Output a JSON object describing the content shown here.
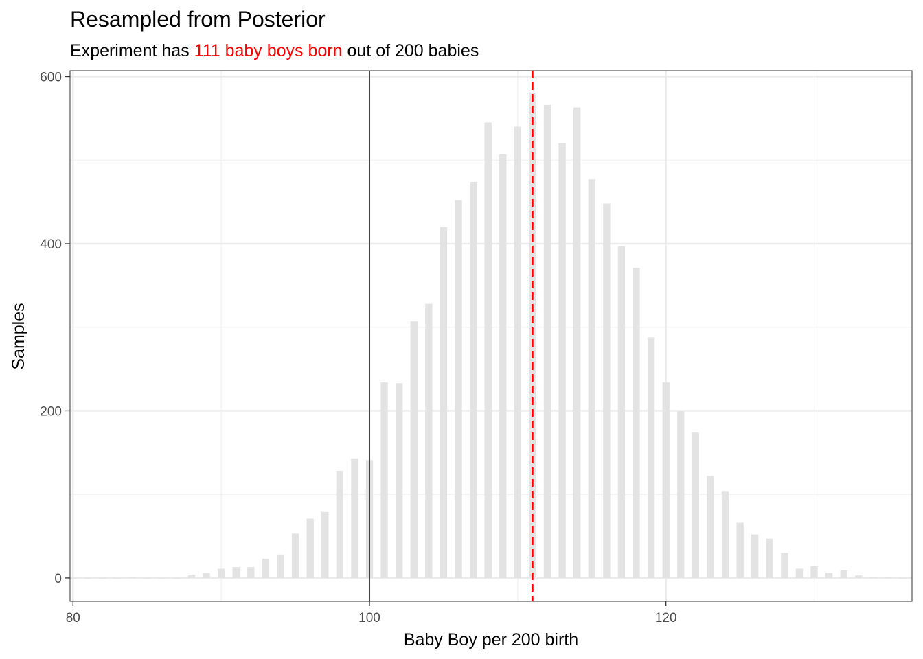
{
  "colors": {
    "bar": "#e3e3e3",
    "highlight": "#ff0000",
    "grid_major": "#ebebeb",
    "grid_minor": "#f2f2f2",
    "axis_text": "#4d4d4d",
    "reference_line": "#000000"
  },
  "title": "Resampled from Posterior",
  "subtitle": {
    "before": "Experiment has ",
    "highlight": "111 baby boys born",
    "after": " out of 200 babies"
  },
  "chart_data": {
    "type": "bar",
    "title": "Resampled from Posterior",
    "subtitle": "Experiment has 111 baby boys born out of 200 babies",
    "xlabel": "Baby Boy per 200 birth",
    "ylabel": "Samples",
    "xlim": [
      79.8,
      136.6
    ],
    "ylim": [
      -28,
      607
    ],
    "x_ticks": [
      80,
      100,
      120
    ],
    "y_ticks": [
      0,
      200,
      400,
      600
    ],
    "grid": true,
    "reference_lines": [
      {
        "axis": "x",
        "value": 100,
        "style": "solid",
        "color": "#000000"
      },
      {
        "axis": "x",
        "value": 111,
        "style": "dashed",
        "color": "#ff0000"
      }
    ],
    "x": [
      80,
      81,
      82,
      83,
      84,
      85,
      86,
      87,
      88,
      89,
      90,
      91,
      92,
      93,
      94,
      95,
      96,
      97,
      98,
      99,
      100,
      101,
      102,
      103,
      104,
      105,
      106,
      107,
      108,
      109,
      110,
      111,
      112,
      113,
      114,
      115,
      116,
      117,
      118,
      119,
      120,
      121,
      122,
      123,
      124,
      125,
      126,
      127,
      128,
      129,
      130,
      131,
      132,
      133,
      134,
      135,
      136
    ],
    "values": [
      0,
      0,
      0,
      0,
      1,
      0,
      0,
      0,
      4,
      6,
      11,
      13,
      13,
      23,
      28,
      53,
      71,
      79,
      128,
      143,
      141,
      234,
      233,
      307,
      328,
      420,
      452,
      474,
      545,
      507,
      540,
      581,
      566,
      520,
      563,
      477,
      448,
      397,
      371,
      288,
      234,
      200,
      174,
      122,
      104,
      66,
      52,
      47,
      30,
      11,
      14,
      6,
      9,
      3,
      1,
      1,
      0
    ]
  }
}
